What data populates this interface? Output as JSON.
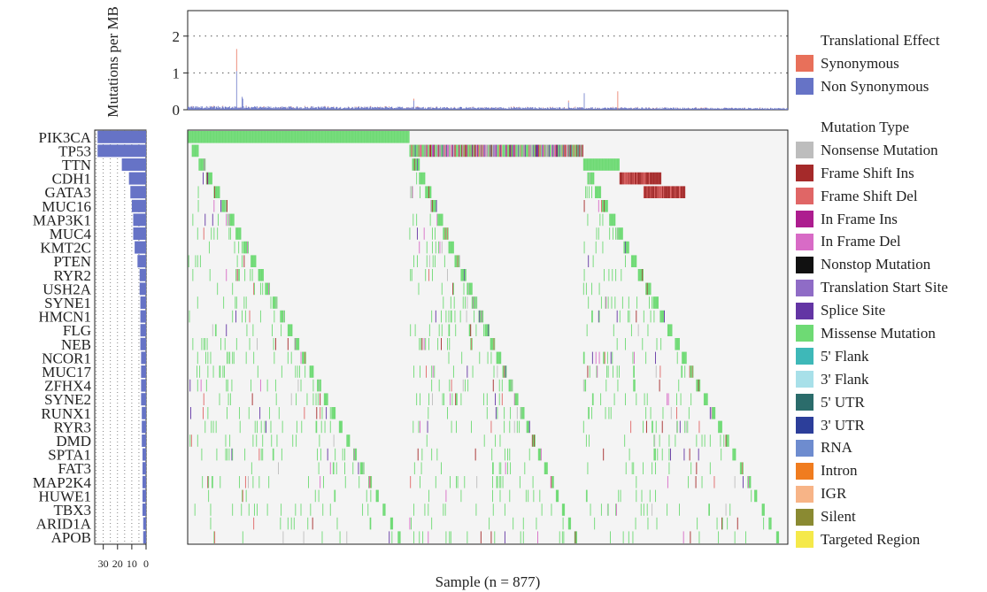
{
  "chart_data": [
    {
      "type": "bar",
      "panel": "top",
      "ylabel": "Mutations per MB",
      "y_ticks": [
        "0",
        "1",
        "2"
      ],
      "ylim": [
        0,
        2.5
      ],
      "x_axis_label": "Sample (n = 877)",
      "n_samples": 877,
      "series": [
        {
          "name": "Synonymous",
          "color": "#E8705A"
        },
        {
          "name": "Non Synonymous",
          "color": "#6673C6"
        }
      ],
      "peaks": [
        {
          "sample": 71,
          "synonymous": 0.6,
          "non_synonymous": 1.05
        },
        {
          "sample": 80,
          "synonymous": 0.0,
          "non_synonymous": 0.3
        },
        {
          "sample": 32,
          "synonymous": 0.0,
          "non_synonymous": 0.1
        },
        {
          "sample": 79,
          "synonymous": 0.0,
          "non_synonymous": 0.35
        },
        {
          "sample": 330,
          "synonymous": 0.05,
          "non_synonymous": 0.25
        },
        {
          "sample": 556,
          "synonymous": 0.05,
          "non_synonymous": 0.2
        },
        {
          "sample": 579,
          "synonymous": 0.0,
          "non_synonymous": 0.45
        },
        {
          "sample": 628,
          "synonymous": 0.5,
          "non_synonymous": 0.0
        }
      ],
      "baseline_typical": 0.08
    },
    {
      "type": "bar",
      "panel": "left",
      "orientation": "horizontal",
      "x_ticks": [
        "30",
        "20",
        "10",
        "0"
      ],
      "genes": [
        "PIK3CA",
        "TP53",
        "TTN",
        "CDH1",
        "GATA3",
        "MUC16",
        "MAP3K1",
        "MUC4",
        "KMT2C",
        "PTEN",
        "RYR2",
        "USH2A",
        "SYNE1",
        "HMCN1",
        "FLG",
        "NEB",
        "NCOR1",
        "MUC17",
        "ZFHX4",
        "SYNE2",
        "RUNX1",
        "RYR3",
        "DMD",
        "SPTA1",
        "FAT3",
        "MAP2K4",
        "HUWE1",
        "TBX3",
        "ARID1A",
        "APOB"
      ],
      "values_percent": [
        34,
        34,
        17,
        12,
        11,
        10,
        9,
        9,
        8,
        6,
        4.5,
        4.5,
        4,
        4,
        4,
        4,
        3.5,
        3.5,
        3.5,
        3.5,
        3,
        3,
        3,
        2.5,
        2.5,
        2.5,
        2.5,
        2.5,
        2,
        2
      ],
      "color": "#6673C6"
    },
    {
      "type": "heatmap",
      "panel": "main",
      "rows": [
        "PIK3CA",
        "TP53",
        "TTN",
        "CDH1",
        "GATA3",
        "MUC16",
        "MAP3K1",
        "MUC4",
        "KMT2C",
        "PTEN",
        "RYR2",
        "USH2A",
        "SYNE1",
        "HMCN1",
        "FLG",
        "NEB",
        "NCOR1",
        "MUC17",
        "ZFHX4",
        "SYNE2",
        "RUNX1",
        "RYR3",
        "DMD",
        "SPTA1",
        "FAT3",
        "MAP2K4",
        "HUWE1",
        "TBX3",
        "ARID1A",
        "APOB"
      ],
      "n_samples": 877,
      "blocks": [
        {
          "gene": "PIK3CA",
          "start": 0,
          "end": 0.37,
          "type": "Missense Mutation"
        },
        {
          "gene": "TP53",
          "start": 0.37,
          "end": 0.66,
          "type": "Mixed"
        },
        {
          "gene": "TTN",
          "start": 0.66,
          "end": 0.72,
          "type": "Missense Mutation"
        },
        {
          "gene": "CDH1",
          "start": 0.72,
          "end": 0.79,
          "type": "Frame Shift Ins"
        },
        {
          "gene": "GATA3",
          "start": 0.76,
          "end": 0.83,
          "type": "Frame Shift Ins"
        }
      ],
      "background": "#F4F4F4"
    }
  ],
  "legend_effect": {
    "title": "Translational Effect",
    "items": [
      {
        "label": "Synonymous",
        "color": "#E8705A"
      },
      {
        "label": "Non Synonymous",
        "color": "#6673C6"
      }
    ]
  },
  "legend_type": {
    "title": "Mutation Type",
    "items": [
      {
        "label": "Nonsense Mutation",
        "color": "#BDBDBD"
      },
      {
        "label": "Frame Shift Ins",
        "color": "#A52A2A"
      },
      {
        "label": "Frame Shift Del",
        "color": "#E06666"
      },
      {
        "label": "In Frame Ins",
        "color": "#AD1D8F"
      },
      {
        "label": "In Frame Del",
        "color": "#D86BC6"
      },
      {
        "label": "Nonstop Mutation",
        "color": "#111111"
      },
      {
        "label": "Translation Start Site",
        "color": "#8F6CC6"
      },
      {
        "label": "Splice Site",
        "color": "#6335A4"
      },
      {
        "label": "Missense Mutation",
        "color": "#6EDA74"
      },
      {
        "label": "5' Flank",
        "color": "#3EB8B8"
      },
      {
        "label": "3' Flank",
        "color": "#A8E0E9"
      },
      {
        "label": "5' UTR",
        "color": "#2B6C6B"
      },
      {
        "label": "3' UTR",
        "color": "#2C3E9A"
      },
      {
        "label": "RNA",
        "color": "#6E8CCF"
      },
      {
        "label": "Intron",
        "color": "#F07C1F"
      },
      {
        "label": "IGR",
        "color": "#F7B487"
      },
      {
        "label": "Silent",
        "color": "#8A8A32"
      },
      {
        "label": "Targeted Region",
        "color": "#F5E94A"
      }
    ]
  }
}
